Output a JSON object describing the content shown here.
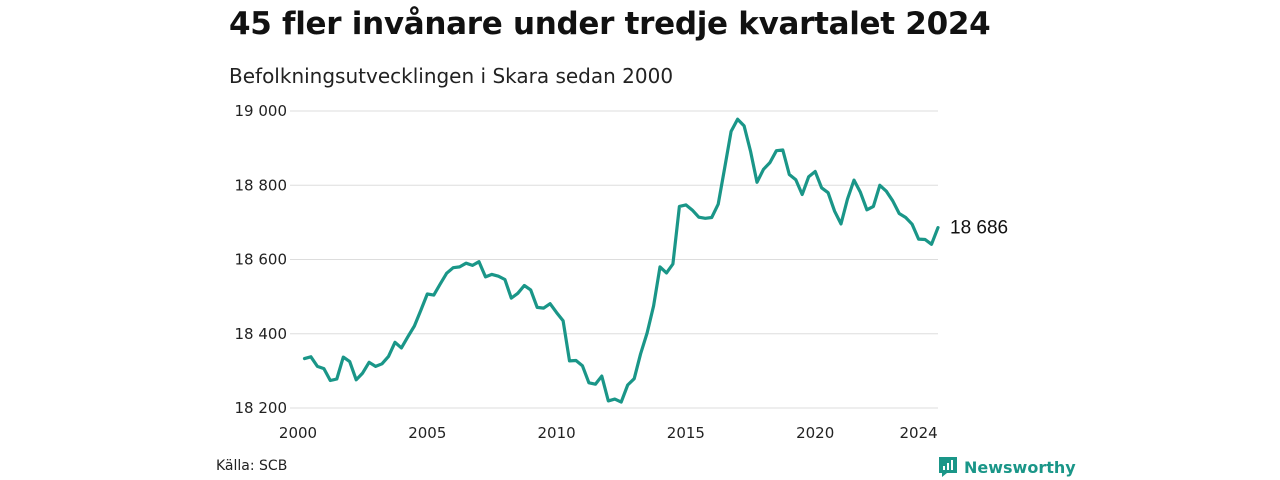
{
  "header": {
    "title": "45 fler invånare under tredje kvartalet 2024",
    "subtitle": "Befolkningsutvecklingen i Skara sedan 2000"
  },
  "footer": {
    "source": "Källa: SCB",
    "brand": "Newsworthy"
  },
  "colors": {
    "line": "#1a9688",
    "grid": "#dddddd",
    "brand": "#1a9688"
  },
  "chart_data": {
    "type": "line",
    "title": "45 fler invånare under tredje kvartalet 2024",
    "subtitle": "Befolkningsutvecklingen i Skara sedan 2000",
    "xlabel": "",
    "ylabel": "",
    "xlim": [
      2000,
      2024.75
    ],
    "ylim": [
      18200,
      19000
    ],
    "x_ticks": [
      2000,
      2005,
      2010,
      2015,
      2020,
      2024
    ],
    "x_tick_labels": [
      "2000",
      "2005",
      "2010",
      "2015",
      "2020",
      "2024"
    ],
    "y_ticks": [
      18200,
      18400,
      18600,
      18800,
      19000
    ],
    "y_tick_labels": [
      "18 200",
      "18 400",
      "18 600",
      "18 800",
      "19 000"
    ],
    "grid": "horizontal",
    "legend": "none",
    "end_label": "18 686",
    "series": [
      {
        "x_start": 2000.25,
        "x_step": 0.25,
        "values": [
          18333,
          18338,
          18312,
          18306,
          18274,
          18278,
          18337,
          18325,
          18276,
          18294,
          18323,
          18312,
          18319,
          18339,
          18377,
          18362,
          18392,
          18421,
          18463,
          18507,
          18504,
          18534,
          18563,
          18578,
          18580,
          18590,
          18584,
          18594,
          18553,
          18560,
          18555,
          18546,
          18496,
          18509,
          18530,
          18518,
          18471,
          18469,
          18481,
          18457,
          18435,
          18327,
          18328,
          18314,
          18268,
          18264,
          18286,
          18219,
          18224,
          18216,
          18262,
          18279,
          18346,
          18402,
          18475,
          18580,
          18564,
          18588,
          18743,
          18747,
          18733,
          18714,
          18711,
          18713,
          18749,
          18847,
          18945,
          18978,
          18960,
          18892,
          18808,
          18843,
          18861,
          18893,
          18895,
          18829,
          18815,
          18775,
          18823,
          18837,
          18793,
          18780,
          18730,
          18696,
          18763,
          18814,
          18781,
          18734,
          18743,
          18800,
          18784,
          18758,
          18724,
          18713,
          18695,
          18655,
          18654,
          18641,
          18686
        ]
      }
    ]
  }
}
